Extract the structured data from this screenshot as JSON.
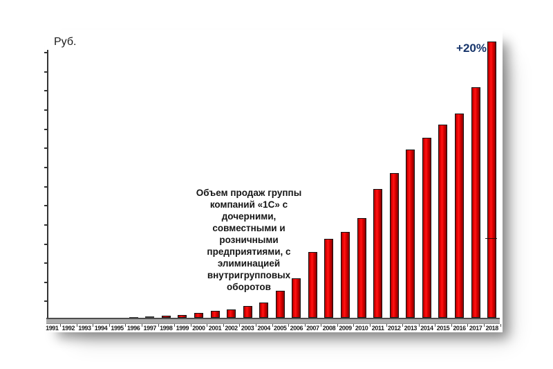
{
  "chart_data": {
    "type": "bar",
    "y_axis_label": "Руб.",
    "growth_label": "+20%",
    "annotation_lines": [
      "Объем продаж  группы",
      "компаний «1С» с",
      "дочерними,",
      "совместными и",
      "розничными",
      "предприятиями, с",
      "элиминацией",
      "внутригрупповых",
      "оборотов"
    ],
    "annotation_text": "Объем продаж группы компаний «1С» с дочерними, совместными и розничными предприятиями, с элиминацией внутригрупповых оборотов",
    "categories": [
      "1991",
      "1992",
      "1993",
      "1994",
      "1995",
      "1996",
      "1997",
      "1998",
      "1999",
      "2000",
      "2001",
      "2002",
      "2003",
      "2004",
      "2005",
      "2006",
      "2007",
      "2008",
      "2009",
      "2010",
      "2011",
      "2012",
      "2013",
      "2014",
      "2015",
      "2016",
      "2017",
      "2018"
    ],
    "values": [
      0,
      0,
      0,
      0,
      0,
      0.3,
      0.5,
      0.8,
      1.3,
      2.0,
      2.9,
      3.6,
      5.0,
      6.6,
      11.7,
      17.1,
      28.5,
      34.2,
      37.2,
      43.2,
      55.9,
      62.8,
      73.0,
      78.1,
      83.8,
      88.6,
      100,
      120
    ],
    "values_unit": "relative, 2017 = 100 (y axis has unlabeled ticks)",
    "bar_divider": {
      "year": "2018",
      "value": 34
    },
    "xlabel": "",
    "ylabel": "Руб.",
    "ylim_relative": [
      0,
      125
    ],
    "grid": "off",
    "legend": "none",
    "colors": {
      "bar_fill": "#e00000",
      "bar_border": "#141414",
      "axis": "#333333",
      "axis_band": "#adadad",
      "growth_text": "#17356b",
      "annotation_text": "#151515",
      "background": "#ffffff"
    }
  }
}
